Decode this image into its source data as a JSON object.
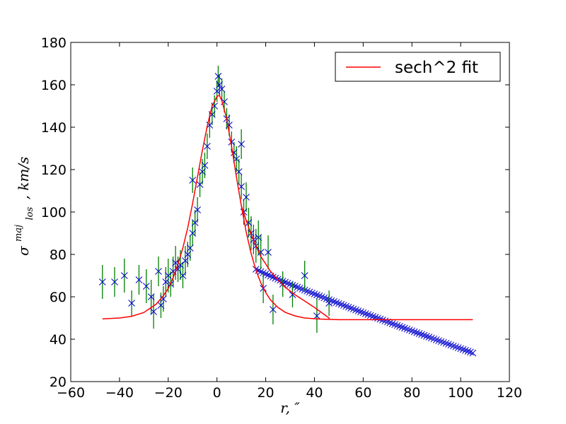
{
  "chart_data": {
    "type": "scatter",
    "title": "",
    "xlabel": "r, ″",
    "ylabel": "σlos maj , km/s",
    "ylabel_main": "σ",
    "ylabel_sup": "maj",
    "ylabel_sub": "los",
    "ylabel_rest": ", km/s",
    "xlim": [
      -60,
      120
    ],
    "ylim": [
      20,
      180
    ],
    "xticks": [
      -60,
      -40,
      -20,
      0,
      20,
      40,
      60,
      80,
      100,
      120
    ],
    "yticks": [
      20,
      40,
      60,
      80,
      100,
      120,
      140,
      160,
      180
    ],
    "xtick_labels": [
      "−60",
      "−40",
      "−20",
      "0",
      "20",
      "40",
      "60",
      "80",
      "100",
      "120"
    ],
    "ytick_labels": [
      "20",
      "40",
      "60",
      "80",
      "100",
      "120",
      "140",
      "160",
      "180"
    ],
    "grid": false,
    "legend": {
      "position": "top-right",
      "entries": [
        {
          "label": "sech^2 fit",
          "color": "#ff0000"
        }
      ]
    },
    "colors": {
      "fit": "#ff0000",
      "marker": "#0000cc",
      "errorbar": "#007f00"
    },
    "series": [
      {
        "kind": "scatter_errorbar",
        "points": [
          {
            "x": -47,
            "y": 67,
            "err": 8
          },
          {
            "x": -42,
            "y": 67,
            "err": 7
          },
          {
            "x": -38,
            "y": 70,
            "err": 8
          },
          {
            "x": -35,
            "y": 57,
            "err": 6
          },
          {
            "x": -32,
            "y": 68,
            "err": 7
          },
          {
            "x": -29,
            "y": 65,
            "err": 8
          },
          {
            "x": -27,
            "y": 60,
            "err": 8
          },
          {
            "x": -26,
            "y": 53,
            "err": 8
          },
          {
            "x": -24,
            "y": 72,
            "err": 7
          },
          {
            "x": -23,
            "y": 56,
            "err": 6
          },
          {
            "x": -22,
            "y": 59,
            "err": 6
          },
          {
            "x": -21,
            "y": 67,
            "err": 7
          },
          {
            "x": -20,
            "y": 70,
            "err": 8
          },
          {
            "x": -19,
            "y": 66,
            "err": 6
          },
          {
            "x": -18,
            "y": 72,
            "err": 7
          },
          {
            "x": -17,
            "y": 76,
            "err": 8
          },
          {
            "x": -16,
            "y": 73,
            "err": 6
          },
          {
            "x": -15,
            "y": 75,
            "err": 7
          },
          {
            "x": -14,
            "y": 70,
            "err": 6
          },
          {
            "x": -13,
            "y": 77,
            "err": 7
          },
          {
            "x": -12,
            "y": 80,
            "err": 6
          },
          {
            "x": -11,
            "y": 83,
            "err": 6
          },
          {
            "x": -10,
            "y": 90,
            "err": 6
          },
          {
            "x": -10,
            "y": 115,
            "err": 6
          },
          {
            "x": -9,
            "y": 95,
            "err": 6
          },
          {
            "x": -8,
            "y": 101,
            "err": 6
          },
          {
            "x": -7,
            "y": 113,
            "err": 6
          },
          {
            "x": -6,
            "y": 119,
            "err": 6
          },
          {
            "x": -5,
            "y": 122,
            "err": 6
          },
          {
            "x": -4,
            "y": 131,
            "err": 6
          },
          {
            "x": -3,
            "y": 141,
            "err": 6
          },
          {
            "x": -2,
            "y": 146,
            "err": 5
          },
          {
            "x": -1,
            "y": 150,
            "err": 5
          },
          {
            "x": 0,
            "y": 157,
            "err": 5
          },
          {
            "x": 0.5,
            "y": 164,
            "err": 5
          },
          {
            "x": 1,
            "y": 160,
            "err": 5
          },
          {
            "x": 2,
            "y": 158,
            "err": 5
          },
          {
            "x": 3,
            "y": 152,
            "err": 5
          },
          {
            "x": 4,
            "y": 144,
            "err": 5
          },
          {
            "x": 5,
            "y": 141,
            "err": 5
          },
          {
            "x": 6,
            "y": 133,
            "err": 5
          },
          {
            "x": 7,
            "y": 128,
            "err": 5
          },
          {
            "x": 8,
            "y": 125,
            "err": 6
          },
          {
            "x": 9,
            "y": 119,
            "err": 6
          },
          {
            "x": 10,
            "y": 132,
            "err": 7
          },
          {
            "x": 10,
            "y": 112,
            "err": 6
          },
          {
            "x": 11,
            "y": 100,
            "err": 6
          },
          {
            "x": 12,
            "y": 107,
            "err": 7
          },
          {
            "x": 13,
            "y": 95,
            "err": 7
          },
          {
            "x": 14,
            "y": 90,
            "err": 8
          },
          {
            "x": 15,
            "y": 87,
            "err": 7
          },
          {
            "x": 16,
            "y": 84,
            "err": 8
          },
          {
            "x": 17,
            "y": 88,
            "err": 8
          },
          {
            "x": 18,
            "y": 81,
            "err": 8
          },
          {
            "x": 19,
            "y": 64,
            "err": 7
          },
          {
            "x": 21,
            "y": 81,
            "err": 8
          },
          {
            "x": 23,
            "y": 54,
            "err": 7
          },
          {
            "x": 27,
            "y": 66,
            "err": 6
          },
          {
            "x": 31,
            "y": 61,
            "err": 6
          },
          {
            "x": 36,
            "y": 70,
            "err": 7
          },
          {
            "x": 41,
            "y": 51,
            "err": 8
          },
          {
            "x": 46,
            "y": 57,
            "err": 6
          }
        ]
      },
      {
        "kind": "model_markers",
        "x_start": 16,
        "x_end": 105,
        "step": 1,
        "y_start": 73,
        "y_end": 33.5
      },
      {
        "kind": "fit_line",
        "name": "sech^2 fit",
        "points": [
          [
            -47,
            49.6
          ],
          [
            -40,
            50
          ],
          [
            -35,
            50.8
          ],
          [
            -30,
            52.6
          ],
          [
            -25,
            56.5
          ],
          [
            -22,
            60.5
          ],
          [
            -20,
            64
          ],
          [
            -18,
            69
          ],
          [
            -16,
            75.5
          ],
          [
            -14,
            83
          ],
          [
            -12,
            92.5
          ],
          [
            -10,
            104
          ],
          [
            -8,
            116.5
          ],
          [
            -6,
            129
          ],
          [
            -4,
            140.5
          ],
          [
            -2,
            150
          ],
          [
            0,
            154.5
          ],
          [
            1,
            155
          ],
          [
            2,
            152.5
          ],
          [
            4,
            144
          ],
          [
            6,
            131
          ],
          [
            8,
            116.5
          ],
          [
            10,
            103
          ],
          [
            12,
            90.5
          ],
          [
            14,
            80.5
          ],
          [
            16,
            72.5
          ],
          [
            18,
            66.5
          ],
          [
            20,
            62
          ],
          [
            22,
            58.5
          ],
          [
            25,
            55
          ],
          [
            28,
            52.7
          ],
          [
            32,
            51
          ],
          [
            36,
            50
          ],
          [
            42,
            49.5
          ],
          [
            50,
            49.2
          ],
          [
            60,
            49.2
          ],
          [
            80,
            49.2
          ],
          [
            105,
            49.2
          ]
        ]
      },
      {
        "kind": "fit_line_2",
        "points": [
          [
            10,
            103
          ],
          [
            12,
            96
          ],
          [
            14,
            89.5
          ],
          [
            16,
            84
          ],
          [
            18,
            79
          ],
          [
            20,
            75.5
          ],
          [
            22,
            72
          ],
          [
            25,
            68
          ],
          [
            28,
            64.5
          ],
          [
            32,
            61
          ],
          [
            36,
            58
          ],
          [
            40,
            55
          ],
          [
            43,
            52.5
          ],
          [
            46,
            50
          ],
          [
            46,
            49.5
          ]
        ]
      }
    ]
  }
}
